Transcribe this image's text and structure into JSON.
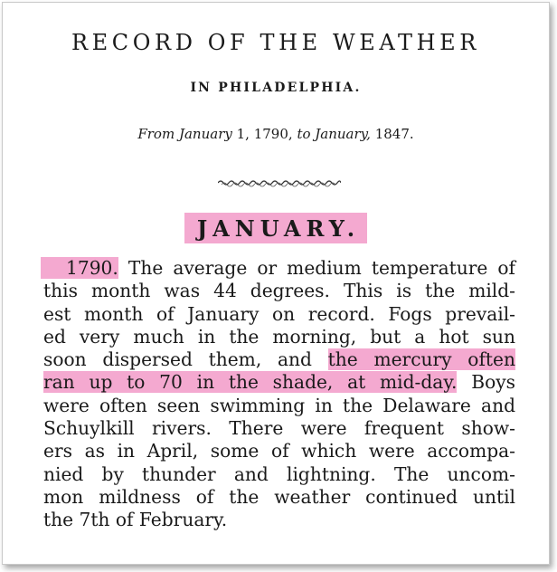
{
  "document": {
    "title": "RECORD OF THE WEATHER",
    "subtitle": "IN PHILADELPHIA.",
    "date_range": {
      "from_word": "From",
      "from_month": "January",
      "from_rest": "1, 1790,",
      "to_word": "to",
      "to_month": "January,",
      "to_year": "1847."
    },
    "month_heading": "JANUARY.",
    "entry": {
      "year": "1790.",
      "lines": [
        {
          "pre": "",
          "highlight": "",
          "post": " The average or medium temperature of"
        },
        {
          "pre": "this  month was 44 degrees.  This is the mild-",
          "highlight": "",
          "post": ""
        },
        {
          "pre": "est month of January on record.  Fogs prevail-",
          "highlight": "",
          "post": ""
        },
        {
          "pre": "ed very much in the morning, but a hot sun",
          "highlight": "",
          "post": ""
        },
        {
          "pre": "soon  dispersed  them,  and ",
          "highlight": "the mercury often",
          "post": ""
        },
        {
          "pre": "",
          "highlight": "ran up to 70 in the shade, at mid-day.",
          "post": "  Boys"
        },
        {
          "pre": "were often seen swimming in the Delaware and",
          "highlight": "",
          "post": ""
        },
        {
          "pre": "Schuylkill rivers.  There were frequent show-",
          "highlight": "",
          "post": ""
        },
        {
          "pre": "ers as in April, some of which were accompa-",
          "highlight": "",
          "post": ""
        },
        {
          "pre": "nied by thunder and lightning.  The uncom-",
          "highlight": "",
          "post": ""
        },
        {
          "pre": "mon mildness of the weather continued until",
          "highlight": "",
          "post": ""
        },
        {
          "pre": "the 7th of February.",
          "highlight": "",
          "post": ""
        }
      ]
    },
    "colors": {
      "highlight": "#f4a9d0",
      "text": "#1a1a1a",
      "background": "#ffffff"
    }
  }
}
